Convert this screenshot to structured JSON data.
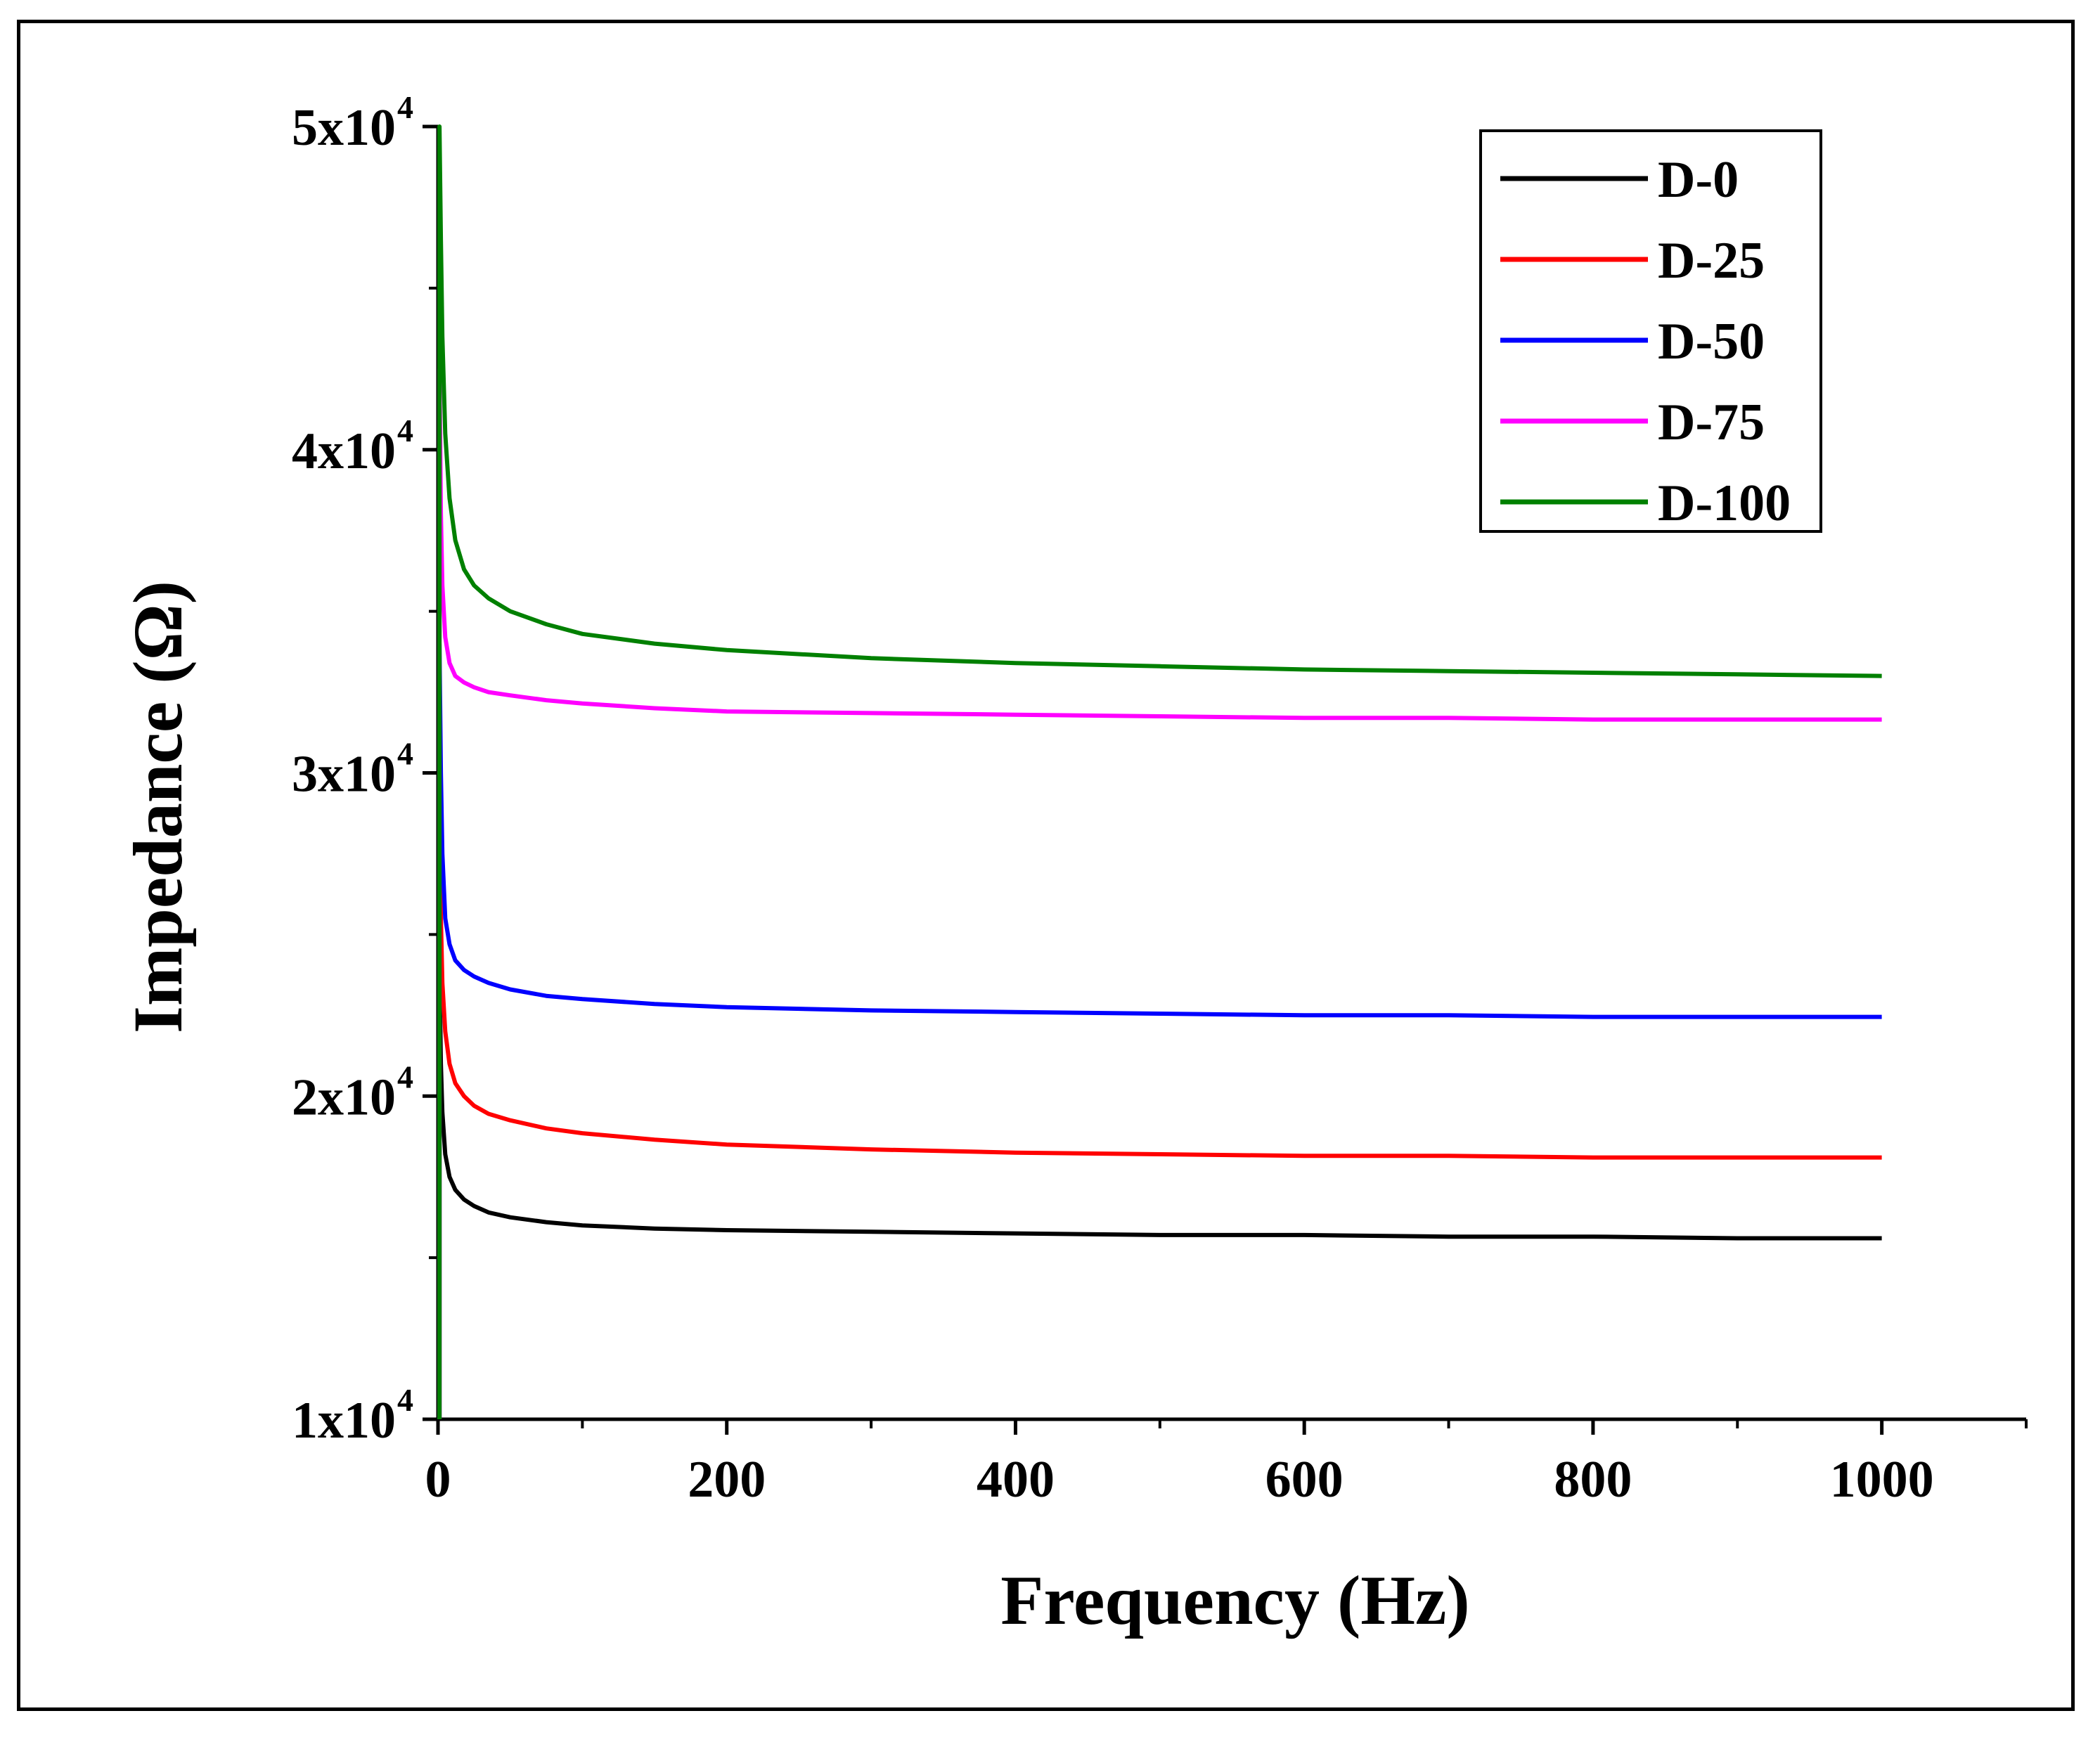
{
  "chart_data": {
    "type": "line",
    "title": "",
    "xlabel": "Frequency (Hz)",
    "ylabel": "Impedance (Ω)",
    "xlim": [
      0,
      1100
    ],
    "ylim": [
      10000,
      50000
    ],
    "grid": false,
    "legend_position": "top-right",
    "x_ticks": [
      {
        "value": 0,
        "label": "0"
      },
      {
        "value": 200,
        "label": "200"
      },
      {
        "value": 400,
        "label": "400"
      },
      {
        "value": 600,
        "label": "600"
      },
      {
        "value": 800,
        "label": "800"
      },
      {
        "value": 1000,
        "label": "1000"
      }
    ],
    "x_minor_ticks": [
      100,
      300,
      500,
      700,
      900,
      1100
    ],
    "y_ticks": [
      {
        "value": 10000,
        "mantissa": "1x10",
        "exponent": "4"
      },
      {
        "value": 20000,
        "mantissa": "2x10",
        "exponent": "4"
      },
      {
        "value": 30000,
        "mantissa": "3x10",
        "exponent": "4"
      },
      {
        "value": 40000,
        "mantissa": "4x10",
        "exponent": "4"
      },
      {
        "value": 50000,
        "mantissa": "5x10",
        "exponent": "4"
      }
    ],
    "y_minor_ticks": [
      15000,
      25000,
      35000,
      45000
    ],
    "x": [
      1,
      2,
      3,
      5,
      8,
      12,
      18,
      25,
      35,
      50,
      75,
      100,
      150,
      200,
      300,
      400,
      500,
      600,
      700,
      800,
      900,
      1000
    ],
    "series": [
      {
        "name": "D-0",
        "color": "#000000",
        "values": [
          24000,
          21000,
          19500,
          18200,
          17500,
          17100,
          16800,
          16600,
          16400,
          16250,
          16100,
          16000,
          15900,
          15850,
          15800,
          15750,
          15700,
          15700,
          15650,
          15650,
          15600,
          15600
        ]
      },
      {
        "name": "D-25",
        "color": "#ff0000",
        "values": [
          28500,
          25500,
          23500,
          22000,
          21000,
          20400,
          20000,
          19700,
          19450,
          19250,
          19000,
          18850,
          18650,
          18500,
          18350,
          18250,
          18200,
          18150,
          18150,
          18100,
          18100,
          18100
        ]
      },
      {
        "name": "D-50",
        "color": "#0000ff",
        "values": [
          34000,
          30000,
          27500,
          25500,
          24700,
          24200,
          23900,
          23700,
          23500,
          23300,
          23100,
          23000,
          22850,
          22750,
          22650,
          22600,
          22550,
          22500,
          22500,
          22450,
          22450,
          22450
        ]
      },
      {
        "name": "D-75",
        "color": "#ff00ff",
        "values": [
          42500,
          38000,
          35800,
          34200,
          33400,
          33000,
          32800,
          32650,
          32500,
          32400,
          32250,
          32150,
          32000,
          31900,
          31850,
          31800,
          31750,
          31700,
          31700,
          31650,
          31650,
          31650
        ]
      },
      {
        "name": "D-100",
        "color": "#008000",
        "values": [
          50000,
          46500,
          43500,
          40500,
          38500,
          37200,
          36300,
          35800,
          35400,
          35000,
          34600,
          34300,
          34000,
          33800,
          33550,
          33400,
          33300,
          33200,
          33150,
          33100,
          33050,
          33000
        ]
      }
    ]
  }
}
